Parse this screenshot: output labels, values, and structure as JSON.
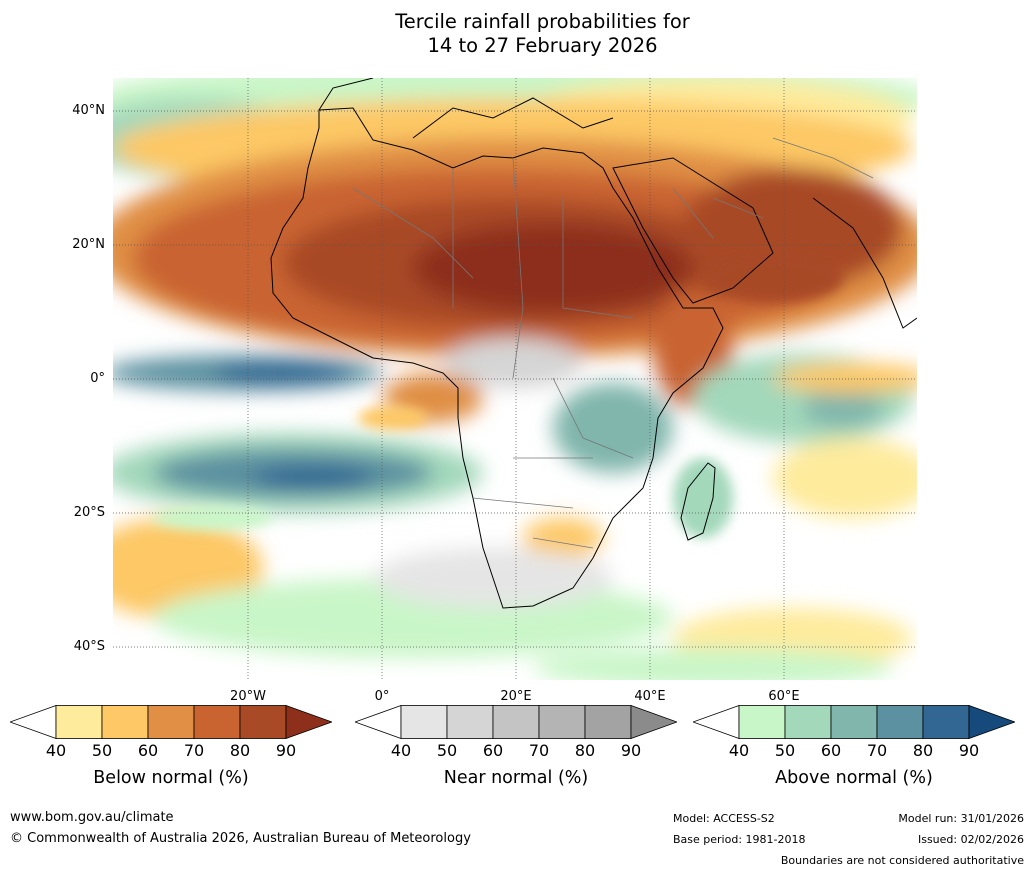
{
  "title": {
    "line1": "Tercile rainfall probabilities for",
    "line2": "14 to 27 February 2026"
  },
  "map": {
    "lat_labels": [
      "40°N",
      "20°N",
      "0°",
      "20°S",
      "40°S"
    ],
    "lon_labels": [
      "20°W",
      "0°",
      "20°E",
      "40°E",
      "60°E"
    ],
    "region": "Africa"
  },
  "colorbars": [
    {
      "label": "Below normal (%)",
      "ticks": [
        "40",
        "50",
        "60",
        "70",
        "80",
        "90"
      ],
      "colors": [
        "#ffffff",
        "#feeb9c",
        "#fdc865",
        "#e08f45",
        "#c96431",
        "#a84a26",
        "#8d2f1b"
      ]
    },
    {
      "label": "Near normal (%)",
      "ticks": [
        "40",
        "50",
        "60",
        "70",
        "80",
        "90"
      ],
      "colors": [
        "#ffffff",
        "#e5e5e5",
        "#d5d5d5",
        "#c4c4c4",
        "#b4b4b4",
        "#a3a3a3",
        "#8b8b8b"
      ]
    },
    {
      "label": "Above normal (%)",
      "ticks": [
        "40",
        "50",
        "60",
        "70",
        "80",
        "90"
      ],
      "colors": [
        "#ffffff",
        "#c9f6c8",
        "#a3d8bb",
        "#80b6ac",
        "#5b91a0",
        "#326793",
        "#164a7c"
      ]
    }
  ],
  "footer": {
    "website": "www.bom.gov.au/climate",
    "copyright": "© Commonwealth of Australia 2026, Australian Bureau of Meteorology",
    "model": "Model: ACCESS-S2",
    "base_period": "Base period: 1981-2018",
    "model_run": "Model run: 31/01/2026",
    "issued": "Issued: 02/02/2026",
    "disclaimer": "Boundaries are not considered authoritative"
  }
}
